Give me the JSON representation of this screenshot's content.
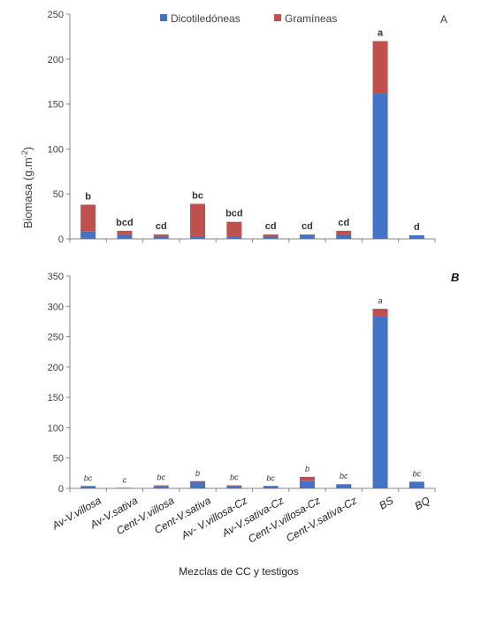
{
  "chart_data": [
    {
      "type": "bar",
      "stacked": true,
      "panel_label": "A",
      "categories": [
        "Av-V.villosa",
        "Av-V.sativa",
        "Cent-V.villosa",
        "Cent-V.sativa",
        "Av- V.villosa-Cz",
        "Av-V.sativa-Cz",
        "Cent-V.villosa-Cz",
        "Cent-V.sativa-Cz",
        "BS",
        "BQ"
      ],
      "series": [
        {
          "name": "Dicotiledóneas",
          "color": "#4472C4",
          "values": [
            8,
            5,
            3,
            3,
            3,
            3,
            4,
            5,
            162,
            4
          ]
        },
        {
          "name": "Gramíneas",
          "color": "#C0504D",
          "values": [
            30,
            4,
            2,
            36,
            16,
            2,
            1,
            4,
            58,
            0
          ]
        }
      ],
      "significance": [
        "b",
        "bcd",
        "cd",
        "bc",
        "bcd",
        "cd",
        "cd",
        "cd",
        "a",
        "d"
      ],
      "ylim": [
        0,
        250
      ],
      "yticks": [
        "0",
        "50",
        "100",
        "150",
        "200",
        "250"
      ],
      "ylabel_main": "Biomasa (g.m",
      "ylabel_sup": "-2",
      "ylabel_end": ")",
      "legend_position": "top"
    },
    {
      "type": "bar",
      "stacked": true,
      "panel_label": "B",
      "categories": [
        "Av-V.villosa",
        "Av-V.sativa",
        "Cent-V.villosa",
        "Cent-V.sativa",
        "Av- V.villosa-Cz",
        "Av-V.sativa-Cz",
        "Cent-V.villosa-Cz",
        "Cent-V.sativa-Cz",
        "BS",
        "BQ"
      ],
      "series": [
        {
          "name": "Dicotiledóneas",
          "color": "#4472C4",
          "values": [
            3,
            1,
            4,
            11,
            3,
            4,
            12,
            6,
            283,
            11
          ]
        },
        {
          "name": "Gramíneas",
          "color": "#C0504D",
          "values": [
            1,
            0,
            1,
            1,
            2,
            0,
            7,
            1,
            13,
            0
          ]
        }
      ],
      "significance": [
        "bc",
        "c",
        "bc",
        "b",
        "bc",
        "bc",
        "b",
        "bc",
        "a",
        "bc"
      ],
      "ylim": [
        0,
        350
      ],
      "yticks": [
        "0",
        "50",
        "100",
        "150",
        "200",
        "250",
        "300",
        "350"
      ],
      "xlabel": "Mezclas de CC y testigos"
    }
  ]
}
